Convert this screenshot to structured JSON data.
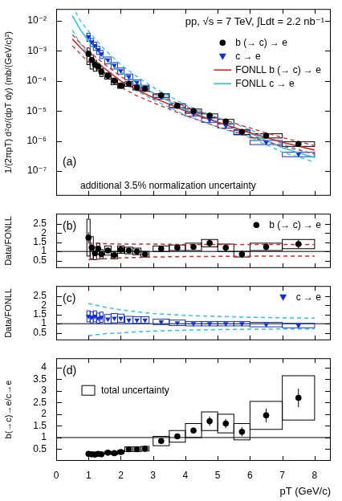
{
  "chart_data": [
    {
      "type": "scatter",
      "title": "pp, √s = 7 TeV, ∫Ldt = 2.2 nb⁻¹",
      "panel_label": "(a)",
      "note": "additional 3.5% normalization uncertainty",
      "y_label": "1/(2πpT) d²σ/(dpT dy) (mb/(GeV/c)²)",
      "log": "y",
      "grid": false,
      "legend": "upper right",
      "tick_labels": "y",
      "xlim": [
        0,
        8.5
      ],
      "xticks": [
        0,
        1,
        2,
        3,
        4,
        5,
        6,
        7,
        8
      ],
      "ylim": [
        1.5e-08,
        0.025
      ],
      "yticks": [
        {
          "value": 1e-07,
          "label": "10⁻⁷"
        },
        {
          "value": 1e-06,
          "label": "10⁻⁶"
        },
        {
          "value": 1e-05,
          "label": "10⁻⁵"
        },
        {
          "value": 0.0001,
          "label": "10⁻⁴"
        },
        {
          "value": 0.001,
          "label": "10⁻³"
        },
        {
          "value": 0.01,
          "label": "10⁻²"
        }
      ],
      "series": [
        {
          "name": "b (→ c) → e",
          "type": "scatter",
          "color": "#000000",
          "marker": "circle",
          "x": [
            1.0,
            1.1,
            1.2,
            1.3,
            1.4,
            1.6,
            1.8,
            2.0,
            2.25,
            2.5,
            2.75,
            3.25,
            3.75,
            4.25,
            4.75,
            5.25,
            5.75,
            6.5,
            7.5
          ],
          "values": [
            0.0008,
            0.0005,
            0.00035,
            0.0003,
            0.0002,
            0.00015,
            0.0001,
            7e-05,
            8e-05,
            6e-05,
            5.5e-05,
            3.3e-05,
            1.5e-05,
            1e-05,
            7e-06,
            4.5e-06,
            2e-06,
            1.5e-06,
            8e-07
          ],
          "stat_err": [
            0.00014,
            8e-05,
            6e-05,
            4e-05,
            3.5e-05,
            2.2e-05,
            1.5e-05,
            8e-06,
            9e-06,
            7e-06,
            8e-06,
            4e-06,
            2e-06,
            1.2e-06,
            1e-06,
            7e-07,
            5e-07,
            2.4e-07,
            1.4e-07
          ],
          "syst_err": [
            0.00045,
            0.00025,
            0.00014,
            8e-05,
            6e-05,
            3.5e-05,
            2.5e-05,
            1.3e-05,
            1.4e-05,
            1e-05,
            1e-05,
            4.5e-06,
            2e-06,
            1.6e-06,
            1e-06,
            7.5e-07,
            3.5e-07,
            2.4e-07,
            1.4e-07
          ],
          "x_halfwidth": [
            0.05,
            0.05,
            0.05,
            0.05,
            0.05,
            0.1,
            0.1,
            0.1,
            0.125,
            0.125,
            0.125,
            0.25,
            0.25,
            0.25,
            0.25,
            0.25,
            0.25,
            0.5,
            0.5
          ]
        },
        {
          "name": "c → e",
          "type": "scatter",
          "color": "#1530d0",
          "marker": "triangle_down",
          "x": [
            1.0,
            1.1,
            1.2,
            1.3,
            1.4,
            1.6,
            1.8,
            2.0,
            2.25,
            2.5,
            2.75,
            3.25,
            3.75,
            4.25,
            4.75,
            5.25,
            5.75,
            6.5,
            7.5
          ],
          "values": [
            0.003,
            0.002,
            0.0015,
            0.0011,
            0.0008,
            0.0005,
            0.00033,
            0.00022,
            0.00014,
            9e-05,
            6e-05,
            3e-05,
            1.5e-05,
            8e-06,
            5e-06,
            3.2e-06,
            1.9e-06,
            9e-07,
            3.6e-07
          ],
          "stat_err": [
            0.00015,
            0.0001,
            7e-05,
            5e-05,
            4e-05,
            2e-05,
            1.3e-05,
            9e-06,
            5e-06,
            3e-06,
            2e-06,
            1e-06,
            5e-07,
            3e-07,
            2e-07,
            1.5e-07,
            1e-07,
            5e-08,
            2e-08
          ],
          "syst_err": [
            0.0009,
            0.0006,
            0.00045,
            0.00033,
            0.00024,
            0.00013,
            8e-05,
            5e-05,
            3e-05,
            1.8e-05,
            1.2e-05,
            5e-06,
            2.5e-06,
            1.3e-06,
            8e-07,
            5e-07,
            3e-07,
            1.4e-07,
            6e-08
          ],
          "x_halfwidth": [
            0.05,
            0.05,
            0.05,
            0.05,
            0.05,
            0.1,
            0.1,
            0.1,
            0.125,
            0.125,
            0.125,
            0.25,
            0.25,
            0.25,
            0.25,
            0.25,
            0.25,
            0.5,
            0.5
          ]
        },
        {
          "name": "FONLL b (→ c) → e",
          "type": "line",
          "color": "#d42a2a",
          "line_style": "solid",
          "x": [
            0.5,
            0.75,
            1,
            1.5,
            2,
            2.5,
            3,
            4,
            5,
            6,
            7,
            8
          ],
          "values": [
            0.0025,
            0.0013,
            0.0007,
            0.00026,
            0.0001,
            5e-05,
            2.8e-05,
            1e-05,
            4.2e-06,
            1.9e-06,
            9e-07,
            5e-07
          ],
          "upper": [
            0.0035,
            0.0018,
            0.00098,
            0.00036,
            0.00014,
            7e-05,
            3.9e-05,
            1.4e-05,
            5.9e-06,
            2.7e-06,
            1.3e-06,
            7e-07
          ],
          "lower": [
            0.0015,
            0.0008,
            0.00042,
            0.00016,
            6.2e-05,
            3.2e-05,
            1.9e-05,
            7e-06,
            3e-06,
            1.4e-06,
            6.7e-07,
            3.7e-07
          ]
        },
        {
          "name": "FONLL c → e",
          "type": "line",
          "color": "#2ec4e0",
          "line_style": "solid",
          "x": [
            0.5,
            0.75,
            1,
            1.5,
            2,
            2.5,
            3,
            4,
            5,
            6,
            7,
            8
          ],
          "values": [
            0.015,
            0.005,
            0.0022,
            0.0006,
            0.0002,
            8.5e-05,
            4e-05,
            1.1e-05,
            4.3e-06,
            1.8e-06,
            6e-07,
            2.8e-07
          ],
          "upper": [
            0.032,
            0.01,
            0.0046,
            0.0011,
            0.00035,
            0.00014,
            6.2e-05,
            1.6e-05,
            6e-06,
            2.4e-06,
            8e-07,
            3.6e-07
          ],
          "lower": [
            0.005,
            0.0017,
            0.00077,
            0.00026,
            0.0001,
            4.6e-05,
            2.4e-05,
            7.2e-06,
            2.9e-06,
            1.3e-06,
            4.3e-07,
            2e-07
          ]
        }
      ]
    },
    {
      "type": "scatter",
      "panel_label": "(b)",
      "y_label": "Data/FONLL",
      "grid": false,
      "legend": "upper right",
      "tick_labels": "y",
      "xlim": [
        0,
        8.5
      ],
      "xticks": [
        0,
        1,
        2,
        3,
        4,
        5,
        6,
        7,
        8
      ],
      "ylim": [
        0.1,
        3.05
      ],
      "yticks": [
        0.5,
        1,
        1.5,
        2,
        2.5
      ],
      "reference_value": 1,
      "band": {
        "color": "#d42a2a",
        "line_style": "dashed",
        "x": [
          1,
          1.5,
          2,
          3,
          4,
          5,
          6,
          7,
          8
        ],
        "upper": [
          1.45,
          1.42,
          1.4,
          1.4,
          1.38,
          1.38,
          1.38,
          1.38,
          1.38
        ],
        "lower": [
          0.55,
          0.6,
          0.65,
          0.7,
          0.72,
          0.73,
          0.74,
          0.75,
          0.75
        ]
      },
      "series": [
        {
          "name": "b (→ c) → e",
          "type": "scatter",
          "color": "#000000",
          "marker": "circle",
          "x": [
            1.0,
            1.1,
            1.2,
            1.3,
            1.4,
            1.6,
            1.8,
            2.0,
            2.25,
            2.5,
            2.75,
            3.25,
            3.75,
            4.25,
            4.75,
            5.25,
            5.75,
            6.5,
            7.5
          ],
          "values": [
            1.75,
            1.2,
            0.9,
            1.15,
            0.85,
            1.05,
            0.8,
            1.1,
            1.05,
            1.0,
            0.85,
            1.15,
            1.2,
            1.25,
            1.45,
            1.2,
            0.85,
            1.25,
            1.4
          ],
          "stat_err": [
            0.3,
            0.2,
            0.15,
            0.15,
            0.15,
            0.15,
            0.12,
            0.12,
            0.12,
            0.12,
            0.12,
            0.15,
            0.15,
            0.15,
            0.2,
            0.2,
            0.2,
            0.2,
            0.25
          ],
          "syst_err": [
            1.0,
            0.6,
            0.35,
            0.3,
            0.25,
            0.25,
            0.2,
            0.2,
            0.18,
            0.18,
            0.15,
            0.15,
            0.15,
            0.2,
            0.2,
            0.2,
            0.15,
            0.2,
            0.25
          ],
          "x_halfwidth": [
            0.05,
            0.05,
            0.05,
            0.05,
            0.05,
            0.1,
            0.1,
            0.1,
            0.125,
            0.125,
            0.125,
            0.25,
            0.25,
            0.25,
            0.25,
            0.25,
            0.25,
            0.5,
            0.5
          ]
        }
      ]
    },
    {
      "type": "scatter",
      "panel_label": "(c)",
      "y_label": "Data/FONLL",
      "grid": false,
      "legend": "upper right",
      "tick_labels": "y",
      "xlim": [
        0,
        8.5
      ],
      "xticks": [
        0,
        1,
        2,
        3,
        4,
        5,
        6,
        7,
        8
      ],
      "ylim": [
        0.1,
        3.05
      ],
      "yticks": [
        0.5,
        1,
        1.5,
        2,
        2.5
      ],
      "reference_value": 1,
      "band": {
        "color": "#2ec4e0",
        "line_style": "dashed",
        "x": [
          1,
          1.5,
          2,
          3,
          4,
          5,
          6,
          7,
          8
        ],
        "upper": [
          2.1,
          1.9,
          1.75,
          1.55,
          1.45,
          1.4,
          1.35,
          1.32,
          1.3
        ],
        "lower": [
          0.35,
          0.45,
          0.5,
          0.6,
          0.65,
          0.68,
          0.7,
          0.71,
          0.72
        ]
      },
      "series": [
        {
          "name": "c → e",
          "type": "scatter",
          "color": "#1530d0",
          "marker": "triangle_down",
          "x": [
            1.0,
            1.1,
            1.2,
            1.3,
            1.4,
            1.6,
            1.8,
            2.0,
            2.25,
            2.5,
            2.75,
            3.25,
            3.75,
            4.25,
            4.75,
            5.25,
            5.75,
            6.5,
            7.5
          ],
          "values": [
            1.4,
            1.35,
            1.4,
            1.3,
            1.35,
            1.25,
            1.3,
            1.3,
            1.2,
            1.2,
            1.2,
            1.1,
            1.05,
            1.0,
            1.0,
            1.0,
            1.0,
            0.95,
            0.9
          ],
          "stat_err": [
            0.08,
            0.07,
            0.07,
            0.06,
            0.06,
            0.05,
            0.05,
            0.05,
            0.05,
            0.05,
            0.05,
            0.04,
            0.04,
            0.04,
            0.05,
            0.05,
            0.06,
            0.06,
            0.08
          ],
          "syst_err": [
            0.3,
            0.3,
            0.3,
            0.28,
            0.28,
            0.25,
            0.25,
            0.22,
            0.2,
            0.18,
            0.18,
            0.15,
            0.15,
            0.12,
            0.12,
            0.12,
            0.12,
            0.12,
            0.12
          ],
          "x_halfwidth": [
            0.05,
            0.05,
            0.05,
            0.05,
            0.05,
            0.1,
            0.1,
            0.1,
            0.125,
            0.125,
            0.125,
            0.25,
            0.25,
            0.25,
            0.25,
            0.25,
            0.25,
            0.5,
            0.5
          ]
        }
      ]
    },
    {
      "type": "scatter",
      "panel_label": "(d)",
      "y_label": "b(→c)→e/c→e",
      "x_label": "pT (GeV/c)",
      "grid": false,
      "legend": "upper left",
      "xlim": [
        0,
        8.5
      ],
      "xticks": [
        0,
        1,
        2,
        3,
        4,
        5,
        6,
        7,
        8
      ],
      "ylim": [
        0,
        4.4
      ],
      "yticks": [
        0.5,
        1,
        1.5,
        2,
        2.5,
        3,
        3.5,
        4
      ],
      "reference_value": 1,
      "series": [
        {
          "box_name": "total uncertainty",
          "type": "scatter",
          "color": "#000000",
          "marker": "circle",
          "x": [
            1.0,
            1.1,
            1.2,
            1.3,
            1.4,
            1.6,
            1.8,
            2.0,
            2.25,
            2.5,
            2.75,
            3.25,
            3.75,
            4.25,
            4.75,
            5.25,
            5.75,
            6.5,
            7.5
          ],
          "values": [
            0.3,
            0.28,
            0.27,
            0.3,
            0.28,
            0.35,
            0.33,
            0.38,
            0.5,
            0.5,
            0.52,
            0.85,
            1.05,
            1.3,
            1.7,
            1.6,
            1.25,
            1.95,
            2.7
          ],
          "stat_err": [
            0.05,
            0.04,
            0.04,
            0.04,
            0.04,
            0.04,
            0.04,
            0.04,
            0.05,
            0.05,
            0.05,
            0.08,
            0.1,
            0.12,
            0.2,
            0.2,
            0.2,
            0.3,
            0.4
          ],
          "syst_err": [
            0.08,
            0.07,
            0.06,
            0.06,
            0.06,
            0.06,
            0.06,
            0.07,
            0.1,
            0.1,
            0.1,
            0.2,
            0.25,
            0.3,
            0.4,
            0.4,
            0.35,
            0.6,
            0.95
          ],
          "x_halfwidth": [
            0.05,
            0.05,
            0.05,
            0.05,
            0.05,
            0.1,
            0.1,
            0.1,
            0.125,
            0.125,
            0.125,
            0.25,
            0.25,
            0.25,
            0.25,
            0.25,
            0.25,
            0.5,
            0.5
          ]
        }
      ]
    }
  ]
}
